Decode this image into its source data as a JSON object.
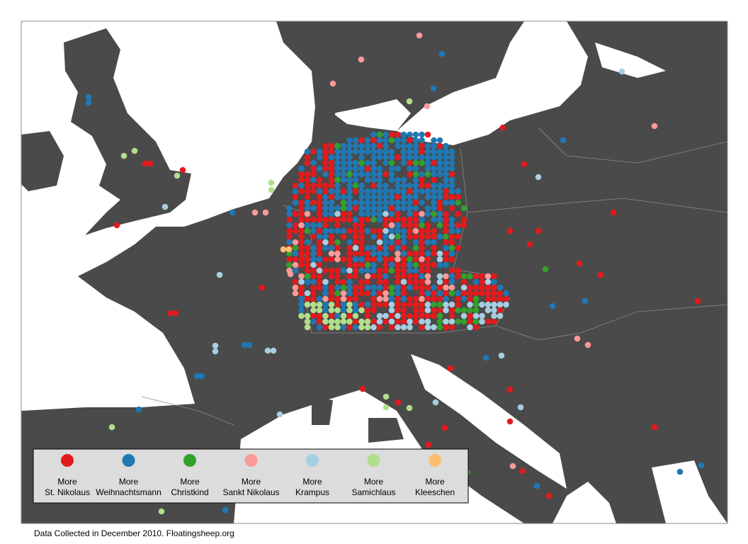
{
  "legend": {
    "entries": [
      {
        "prefix": "More",
        "name": "St. Nikolaus",
        "color": "#e31a1c"
      },
      {
        "prefix": "More",
        "name": "Weihnachtsmann",
        "color": "#1f78b4"
      },
      {
        "prefix": "More",
        "name": "Christkind",
        "color": "#33a02c"
      },
      {
        "prefix": "More",
        "name": "Sankt Nikolaus",
        "color": "#fb9a99"
      },
      {
        "prefix": "More",
        "name": "Krampus",
        "color": "#a6cee3"
      },
      {
        "prefix": "More",
        "name": "Samichlaus",
        "color": "#b2df8a"
      },
      {
        "prefix": "More",
        "name": "Kleeschen",
        "color": "#fdbf6f"
      }
    ]
  },
  "footer": {
    "text": "Data Collected in December 2010. Floatingsheep.org"
  }
}
